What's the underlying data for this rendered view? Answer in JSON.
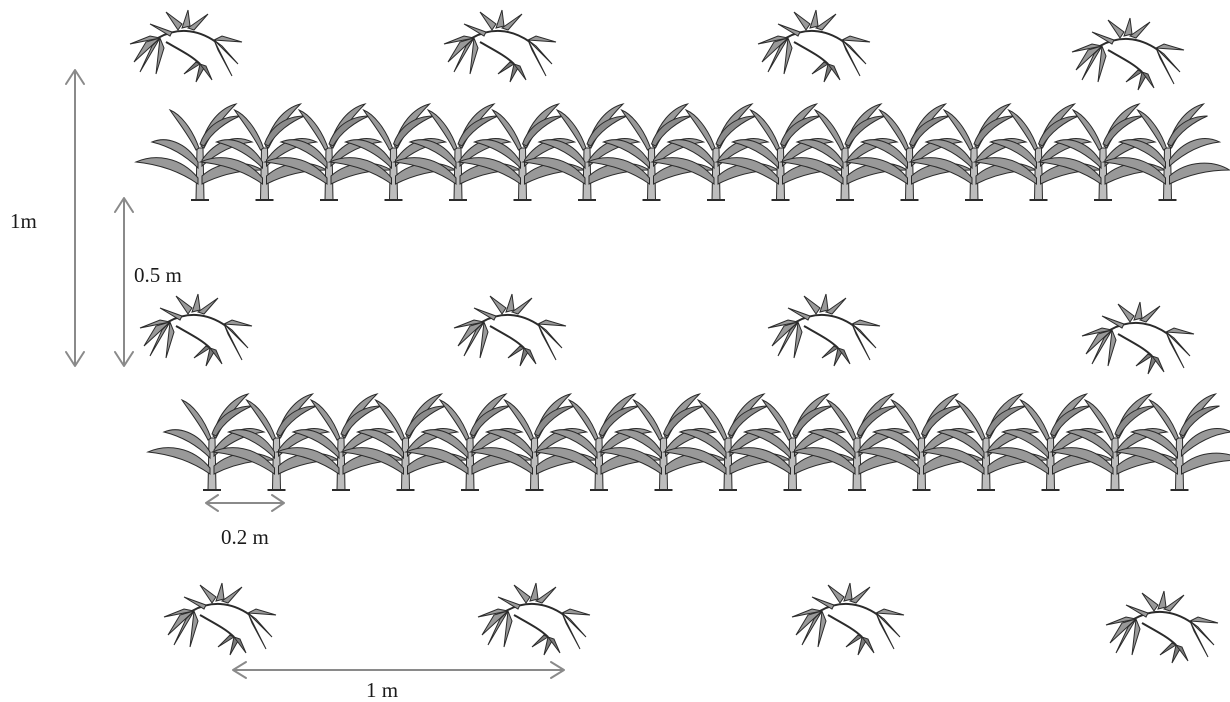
{
  "labels": {
    "row_spacing_outer": "1m",
    "row_spacing_inner": "0.5 m",
    "maize_spacing": "0.2 m",
    "cassava_spacing": "1 m"
  },
  "layout_rows": [
    {
      "crop": "cassava",
      "count": 4
    },
    {
      "crop": "maize",
      "count": 16
    },
    {
      "crop": "cassava",
      "count": 4
    },
    {
      "crop": "maize",
      "count": 16
    },
    {
      "crop": "cassava",
      "count": 4
    }
  ],
  "colors": {
    "plant_fill": "#999999",
    "plant_stroke": "#2b2b2b",
    "arrow": "#8a8a8a",
    "text": "#1a1a1a"
  },
  "icons": {
    "maize": "maize-plant-icon",
    "cassava": "cassava-plant-icon"
  }
}
